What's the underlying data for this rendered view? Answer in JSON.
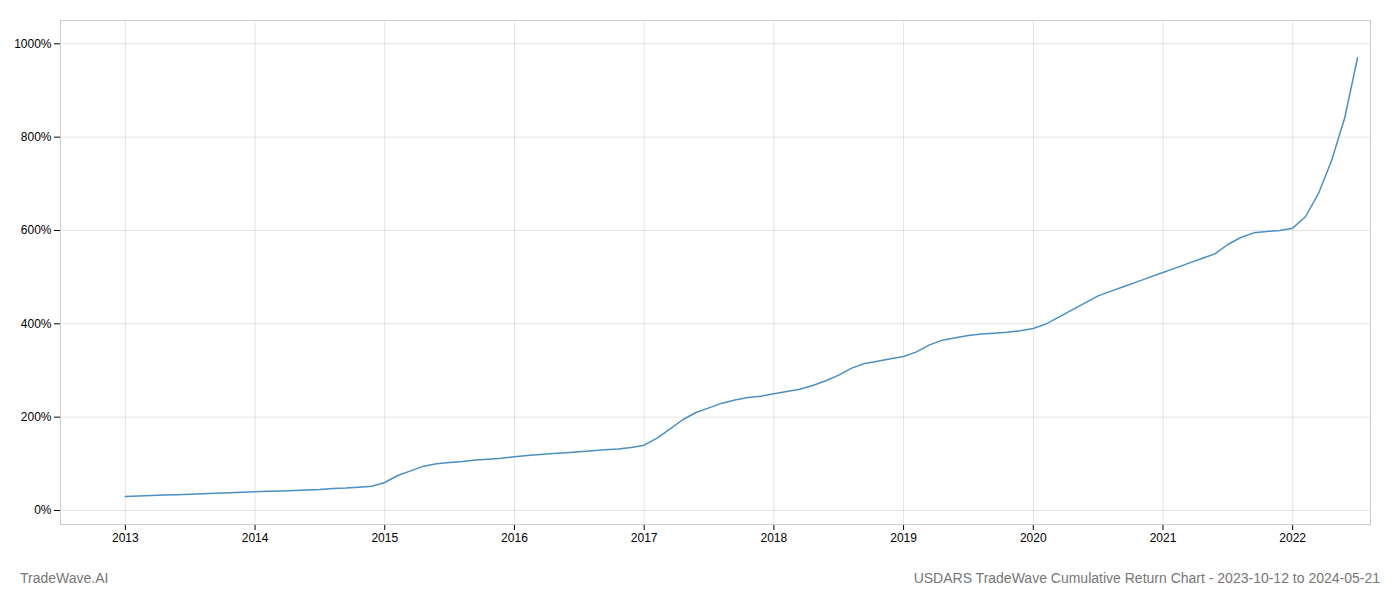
{
  "chart_data": {
    "type": "line",
    "title": "USDARS TradeWave Cumulative Return Chart - 2023-10-12 to 2024-05-21",
    "annotations": [
      "TradeWave.AI"
    ],
    "color": "#4a90c4",
    "grid": true,
    "xlim": [
      2012.5,
      2022.6
    ],
    "xticks": [
      2013,
      2014,
      2015,
      2016,
      2017,
      2018,
      2019,
      2020,
      2021,
      2022
    ],
    "ylim": [
      -30,
      1050
    ],
    "yticks": [
      {
        "value": 0,
        "label": "0%"
      },
      {
        "value": 200,
        "label": "200%"
      },
      {
        "value": 400,
        "label": "400%"
      },
      {
        "value": 600,
        "label": "600%"
      },
      {
        "value": 800,
        "label": "800%"
      },
      {
        "value": 1000,
        "label": "1000%"
      }
    ],
    "x": [
      2013.0,
      2013.1,
      2013.2,
      2013.3,
      2013.4,
      2013.5,
      2013.6,
      2013.7,
      2013.8,
      2013.9,
      2014.0,
      2014.1,
      2014.2,
      2014.3,
      2014.4,
      2014.5,
      2014.6,
      2014.7,
      2014.8,
      2014.9,
      2015.0,
      2015.1,
      2015.2,
      2015.3,
      2015.4,
      2015.5,
      2015.6,
      2015.7,
      2015.8,
      2015.9,
      2016.0,
      2016.1,
      2016.2,
      2016.3,
      2016.4,
      2016.5,
      2016.6,
      2016.7,
      2016.8,
      2016.9,
      2017.0,
      2017.1,
      2017.2,
      2017.3,
      2017.4,
      2017.5,
      2017.6,
      2017.7,
      2017.8,
      2017.9,
      2018.0,
      2018.1,
      2018.2,
      2018.3,
      2018.4,
      2018.5,
      2018.6,
      2018.7,
      2018.8,
      2018.9,
      2019.0,
      2019.1,
      2019.2,
      2019.3,
      2019.4,
      2019.5,
      2019.6,
      2019.7,
      2019.8,
      2019.9,
      2020.0,
      2020.1,
      2020.2,
      2020.3,
      2020.4,
      2020.5,
      2020.6,
      2020.7,
      2020.8,
      2020.9,
      2021.0,
      2021.1,
      2021.2,
      2021.3,
      2021.4,
      2021.5,
      2021.6,
      2021.7,
      2021.8,
      2021.9,
      2022.0,
      2022.1,
      2022.2,
      2022.3,
      2022.4,
      2022.5
    ],
    "values": [
      30,
      31,
      32,
      33,
      34,
      35,
      36,
      37,
      38,
      39,
      40,
      41,
      42,
      43,
      44,
      45,
      47,
      48,
      50,
      52,
      60,
      75,
      85,
      95,
      100,
      103,
      105,
      108,
      110,
      112,
      115,
      118,
      120,
      122,
      124,
      126,
      128,
      130,
      132,
      135,
      140,
      155,
      175,
      195,
      210,
      220,
      230,
      237,
      242,
      245,
      250,
      255,
      260,
      268,
      278,
      290,
      305,
      315,
      320,
      325,
      330,
      340,
      355,
      365,
      370,
      375,
      378,
      380,
      382,
      385,
      390,
      400,
      415,
      430,
      445,
      460,
      470,
      480,
      490,
      500,
      510,
      520,
      530,
      540,
      550,
      570,
      585,
      595,
      598,
      600,
      605,
      630,
      680,
      750,
      840,
      970
    ]
  }
}
